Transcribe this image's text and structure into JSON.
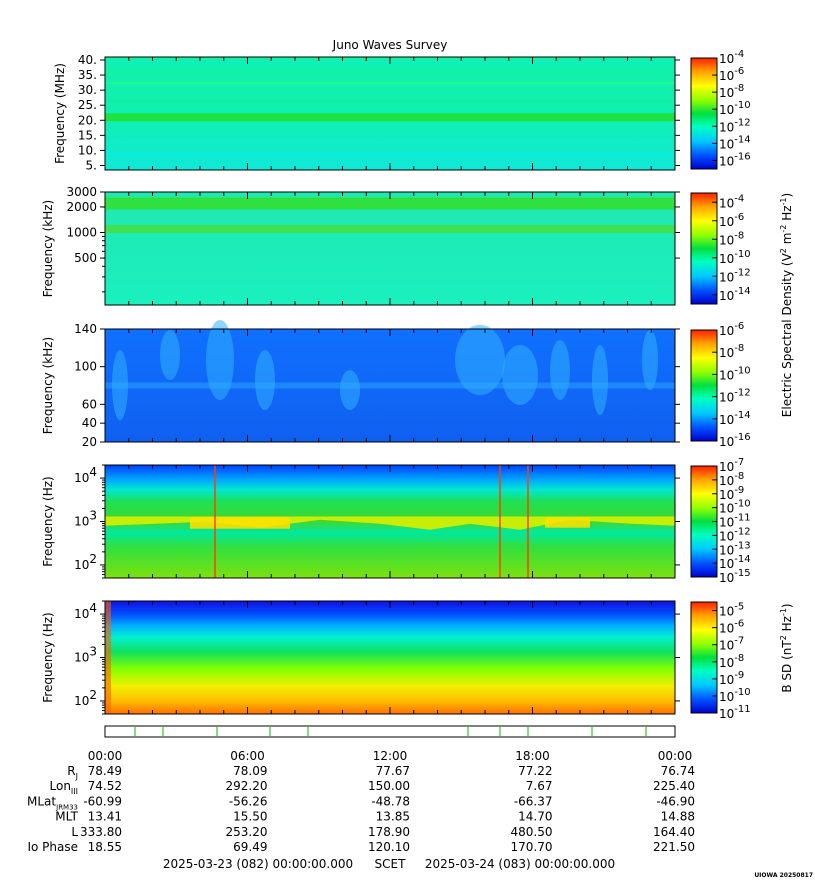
{
  "title": "Juno Waves Survey",
  "colors": {
    "palette": [
      "#0000cc",
      "#0050ff",
      "#00c8ff",
      "#00ffc0",
      "#00e040",
      "#90ff00",
      "#ffff00",
      "#ffa000",
      "#ff2000"
    ]
  },
  "chart_data": [
    {
      "type": "heatmap",
      "panel": "HFR high",
      "ylabel": "Frequency (MHz)",
      "yscale": "linear",
      "ylim": [
        3.5,
        41
      ],
      "yticks": [
        "40.",
        "35.",
        "30.",
        "25.",
        "20.",
        "15.",
        "10.",
        "5."
      ],
      "ytick_values": [
        40,
        35,
        30,
        25,
        20,
        15,
        10,
        5
      ],
      "colorbar": {
        "ticks": [
          "10-4",
          "10-6",
          "10-8",
          "10-10",
          "10-12",
          "10-14",
          "10-16"
        ],
        "exps": [
          -4,
          -6,
          -8,
          -10,
          -12,
          -14,
          -16
        ],
        "range": [
          -17,
          -4
        ]
      },
      "description_bands": [
        {
          "freq": 21,
          "level": "10-12"
        }
      ]
    },
    {
      "type": "heatmap",
      "panel": "HFR low",
      "ylabel": "Frequency (kHz)",
      "yscale": "log",
      "ylim": [
        140,
        3000
      ],
      "yticks": [
        "3000",
        "2000",
        "1000",
        "500"
      ],
      "ytick_values": [
        3000,
        2000,
        1000,
        500
      ],
      "colorbar": {
        "ticks": [
          "10-4",
          "10-6",
          "10-8",
          "10-10",
          "10-12",
          "10-14"
        ],
        "exps": [
          -4,
          -6,
          -8,
          -10,
          -12,
          -14
        ],
        "range": [
          -15,
          -3
        ]
      }
    },
    {
      "type": "heatmap",
      "panel": "LFR high",
      "ylabel": "Frequency (kHz)",
      "yscale": "linear",
      "ylim": [
        20,
        140
      ],
      "yticks": [
        "140",
        "100",
        "60",
        "40",
        "20"
      ],
      "ytick_values": [
        140,
        100,
        60,
        40,
        20
      ],
      "colorbar": {
        "ticks": [
          "10-6",
          "10-8",
          "10-10",
          "10-12",
          "10-14",
          "10-16"
        ],
        "exps": [
          -6,
          -8,
          -10,
          -12,
          -14,
          -16
        ],
        "range": [
          -16,
          -6
        ]
      }
    },
    {
      "type": "heatmap",
      "panel": "LFR low",
      "ylabel": "Frequency (Hz)",
      "yscale": "log",
      "ylim": [
        50,
        20000
      ],
      "yticks": [
        "10^4",
        "10^3",
        "10^2"
      ],
      "ytick_values": [
        10000,
        1000,
        100
      ],
      "colorbar": {
        "ticks": [
          "10-7",
          "10-8",
          "10-9",
          "10-10",
          "10-11",
          "10-12",
          "10-13",
          "10-14",
          "10-15"
        ],
        "exps": [
          -7,
          -8,
          -9,
          -10,
          -11,
          -12,
          -13,
          -14,
          -15
        ],
        "range": [
          -15,
          -7
        ]
      }
    },
    {
      "type": "heatmap",
      "panel": "Magnetic",
      "ylabel": "Frequency (Hz)",
      "yscale": "log",
      "ylim": [
        50,
        20000
      ],
      "yticks": [
        "10^4",
        "10^3",
        "10^2"
      ],
      "ytick_values": [
        10000,
        1000,
        100
      ],
      "colorbar": {
        "ticks": [
          "10-5",
          "10-6",
          "10-7",
          "10-8",
          "10-9",
          "10-10",
          "10-11"
        ],
        "exps": [
          -5,
          -6,
          -7,
          -8,
          -9,
          -10,
          -11
        ],
        "range": [
          -11,
          -4.5
        ]
      }
    }
  ],
  "colorbar_labels": {
    "electric": "Electric Spectral Density (V2 m-2 Hz-1)",
    "magnetic": "B SD (nT2 Hz-1)"
  },
  "ephemeris": {
    "times": [
      "00:00",
      "06:00",
      "12:00",
      "18:00",
      "00:00"
    ],
    "rows": [
      {
        "label": "RJ",
        "values": [
          "78.49",
          "78.09",
          "77.67",
          "77.22",
          "76.74"
        ]
      },
      {
        "label": "LonIII",
        "values": [
          "74.52",
          "292.20",
          "150.00",
          "7.67",
          "225.40"
        ]
      },
      {
        "label": "MLatJRM33",
        "values": [
          "-60.99",
          "-56.26",
          "-48.78",
          "-66.37",
          "-46.90"
        ]
      },
      {
        "label": "MLT",
        "values": [
          "13.41",
          "15.50",
          "13.85",
          "14.70",
          "14.88"
        ]
      },
      {
        "label": "L",
        "values": [
          "333.80",
          "253.20",
          "178.90",
          "480.50",
          "164.40"
        ]
      },
      {
        "label": "Io Phase",
        "values": [
          "18.55",
          "69.49",
          "120.10",
          "170.70",
          "221.50"
        ]
      }
    ]
  },
  "footer": {
    "start": "2025-03-23 (082) 00:00:00.000",
    "scet": "SCET",
    "end": "2025-03-24 (083) 00:00:00.000",
    "stamp": "UIOWA 20250817"
  }
}
